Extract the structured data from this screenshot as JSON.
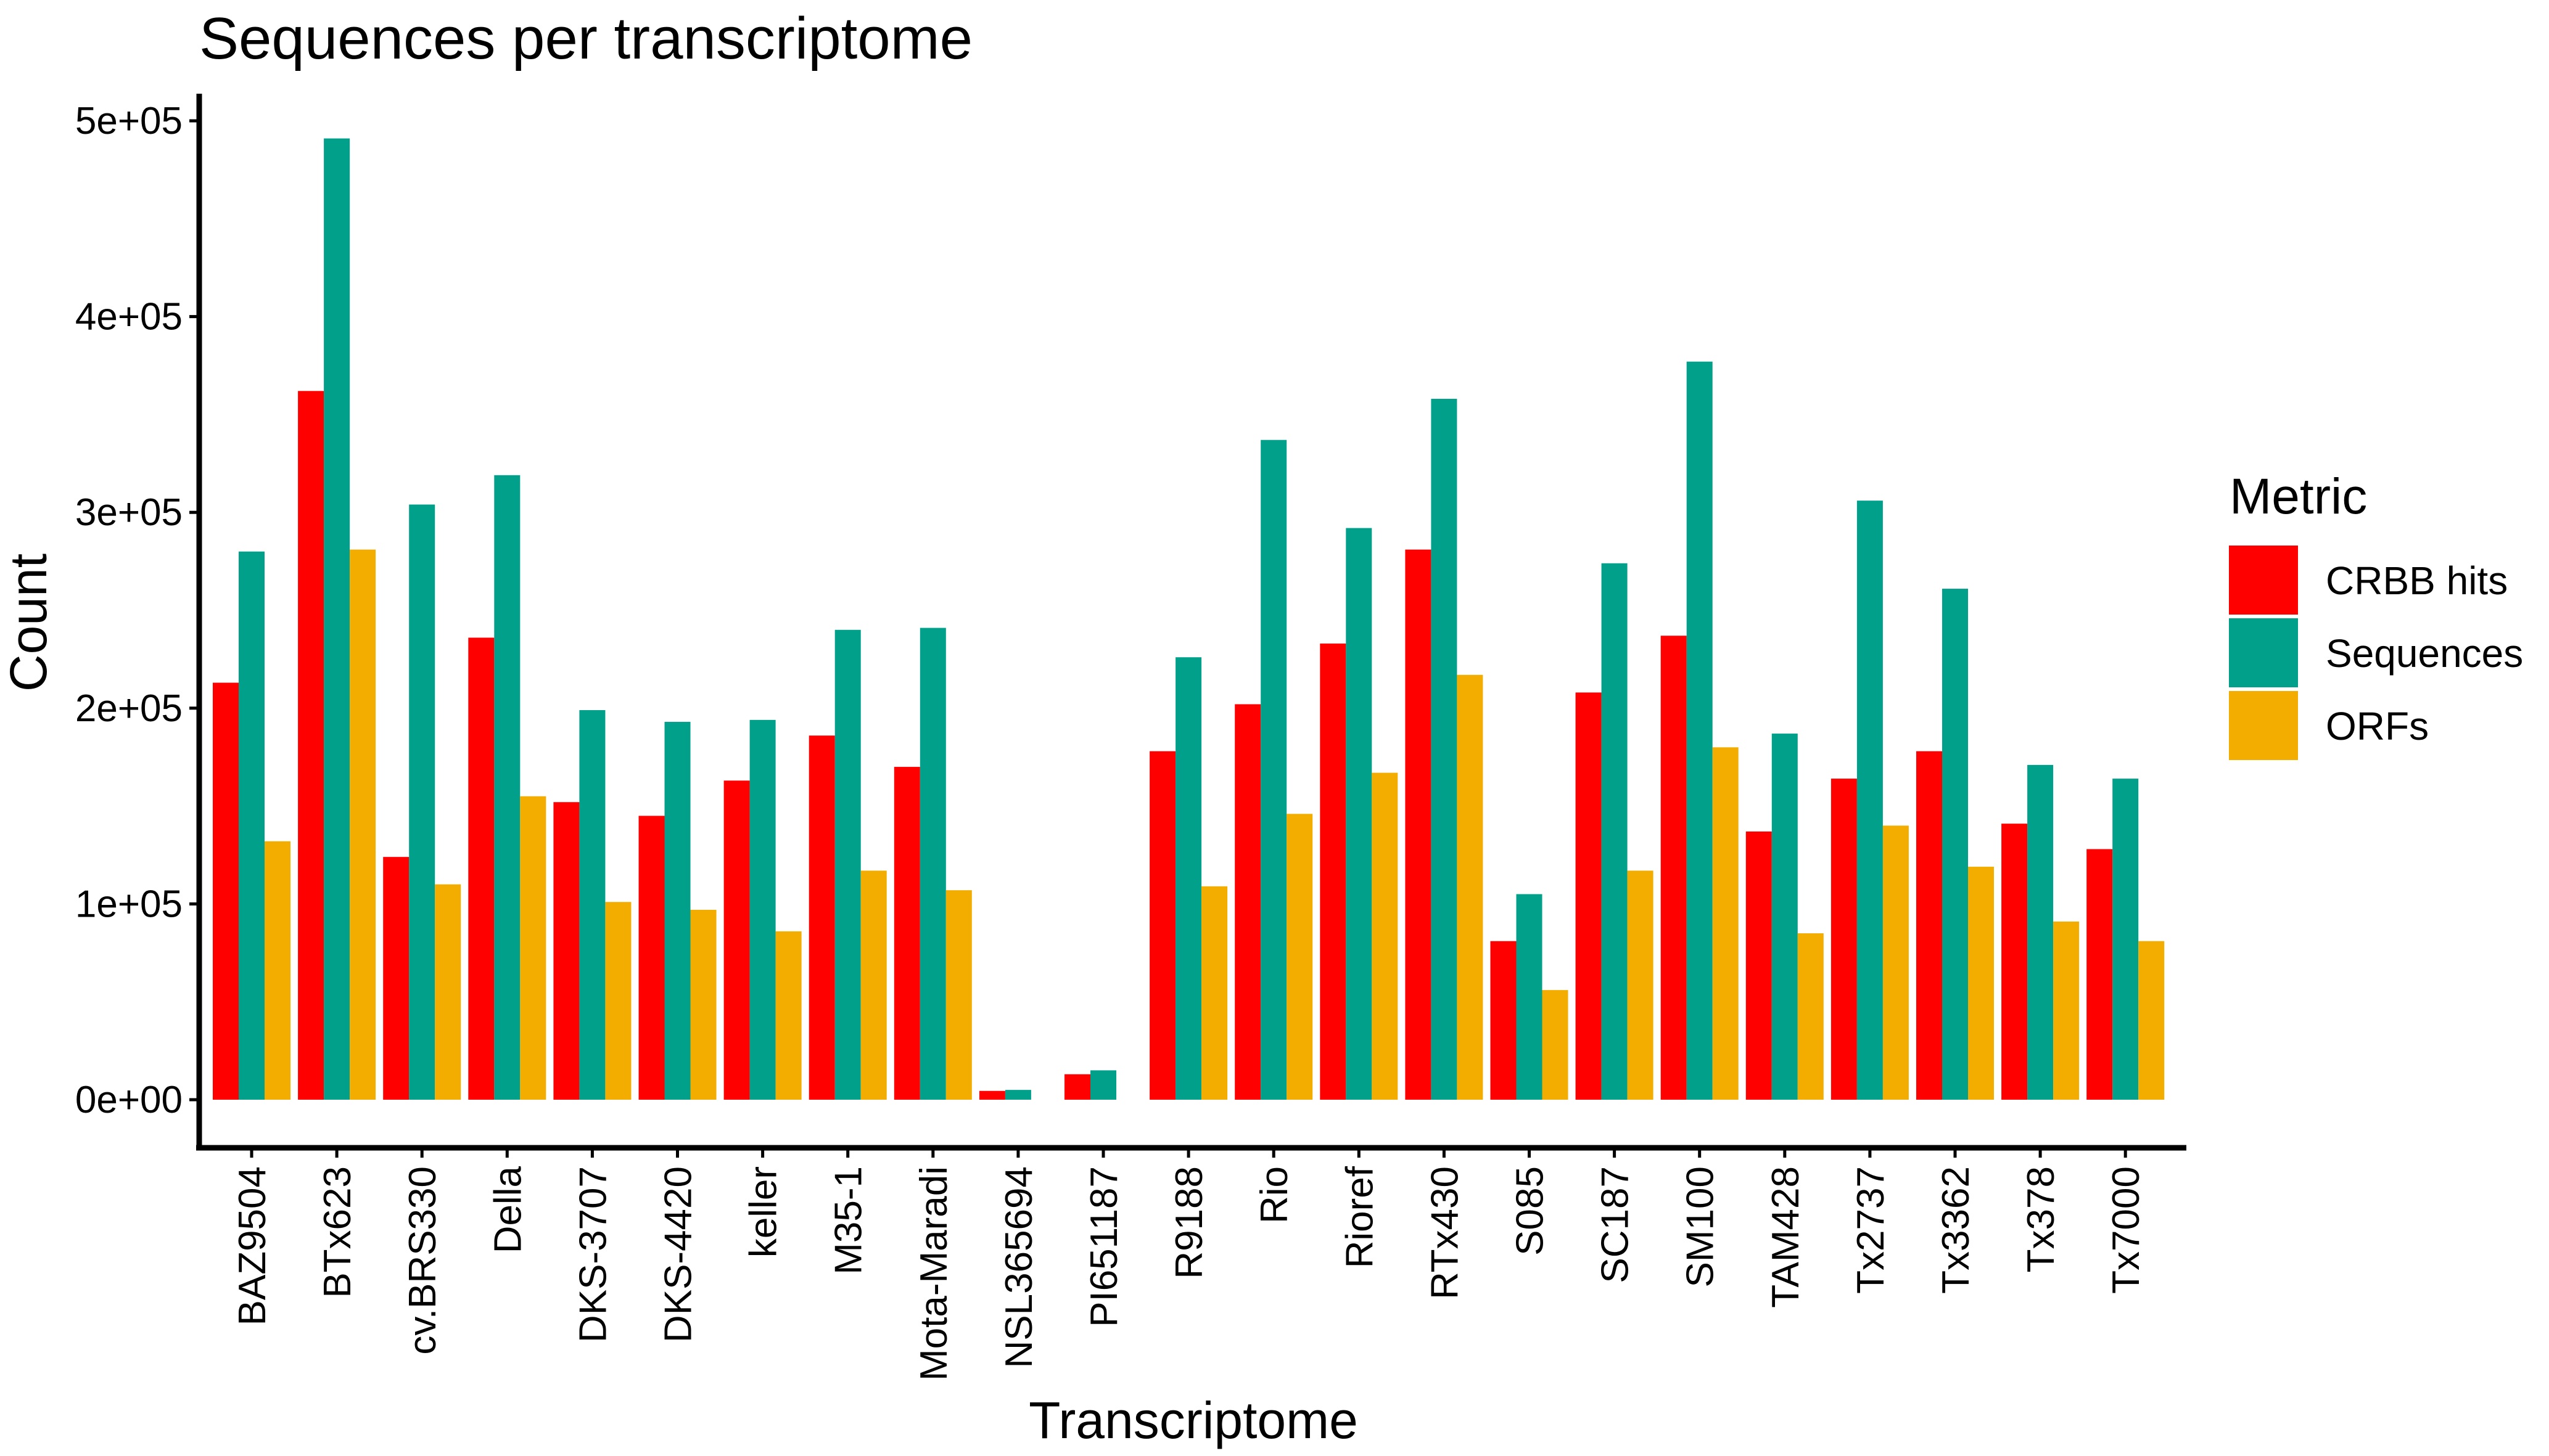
{
  "chart_data": {
    "type": "bar",
    "title": "Sequences per transcriptome",
    "xlabel": "Transcriptome",
    "ylabel": "Count",
    "ylim": [
      0,
      500000
    ],
    "yticks": [
      0,
      100000,
      200000,
      300000,
      400000,
      500000
    ],
    "ytick_labels": [
      "0e+00",
      "1e+05",
      "2e+05",
      "3e+05",
      "4e+05",
      "5e+05"
    ],
    "grid": false,
    "legend_position": "right",
    "legend_title": "Metric",
    "categories": [
      "BAZ9504",
      "BTx623",
      "cv.BRS330",
      "Della",
      "DKS-3707",
      "DKS-4420",
      "keller",
      "M35-1",
      "Mota-Maradi",
      "NSL365694",
      "PI651187",
      "R9188",
      "Rio",
      "Rioref",
      "RTx430",
      "S085",
      "SC187",
      "SM100",
      "TAM428",
      "Tx2737",
      "Tx3362",
      "Tx378",
      "Tx7000"
    ],
    "series": [
      {
        "name": "CRBB hits",
        "color": "#FF0000",
        "values": [
          213000,
          362000,
          124000,
          236000,
          152000,
          145000,
          163000,
          186000,
          170000,
          4500,
          13000,
          178000,
          202000,
          233000,
          281000,
          81000,
          208000,
          237000,
          137000,
          164000,
          178000,
          141000,
          128000
        ]
      },
      {
        "name": "Sequences",
        "color": "#00A08A",
        "values": [
          280000,
          491000,
          304000,
          319000,
          199000,
          193000,
          194000,
          240000,
          241000,
          5000,
          15000,
          226000,
          337000,
          292000,
          358000,
          105000,
          274000,
          377000,
          187000,
          306000,
          261000,
          171000,
          164000
        ]
      },
      {
        "name": "ORFs",
        "color": "#F2AD00",
        "values": [
          132000,
          281000,
          110000,
          155000,
          101000,
          97000,
          86000,
          117000,
          107000,
          0,
          0,
          109000,
          146000,
          167000,
          217000,
          56000,
          117000,
          180000,
          85000,
          140000,
          119000,
          91000,
          81000
        ]
      }
    ]
  }
}
